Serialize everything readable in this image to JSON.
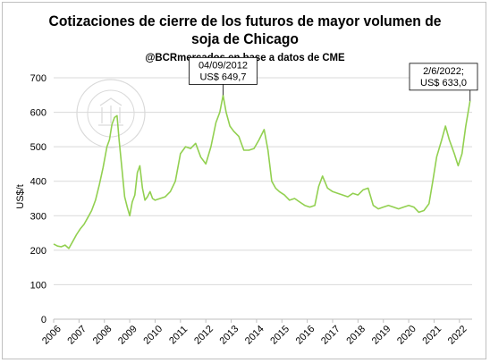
{
  "chart_data": {
    "type": "line",
    "title": "Cotizaciones de cierre de los futuros de mayor volumen de",
    "title_line2": "soja de Chicago",
    "subtitle": "@BCRmercados en base a datos de CME",
    "xlabel": "",
    "ylabel": "US$/t",
    "ylim": [
      0,
      700
    ],
    "yticks": [
      "0",
      "100",
      "200",
      "300",
      "400",
      "500",
      "600",
      "700"
    ],
    "xticks": [
      "2006",
      "2007",
      "2008",
      "2009",
      "2010",
      "2011",
      "2012",
      "2013",
      "2014",
      "2015",
      "2016",
      "2017",
      "2018",
      "2019",
      "2020",
      "2021",
      "2022"
    ],
    "xlim": [
      2006.0,
      2022.5
    ],
    "grid": true,
    "line_color": "#92d050",
    "series": [
      {
        "x": [
          2006.0,
          2006.15,
          2006.3,
          2006.45,
          2006.6,
          2006.75,
          2006.9,
          2007.05,
          2007.2,
          2007.35,
          2007.5,
          2007.65,
          2007.8,
          2007.95,
          2008.1,
          2008.2,
          2008.3,
          2008.4,
          2008.5,
          2008.58,
          2008.7,
          2008.8,
          2008.9,
          2009.0,
          2009.1,
          2009.2,
          2009.3,
          2009.4,
          2009.5,
          2009.6,
          2009.7,
          2009.8,
          2009.9,
          2010.0,
          2010.2,
          2010.4,
          2010.6,
          2010.8,
          2011.0,
          2011.2,
          2011.4,
          2011.6,
          2011.8,
          2012.0,
          2012.2,
          2012.4,
          2012.55,
          2012.68,
          2012.8,
          2012.95,
          2013.1,
          2013.3,
          2013.5,
          2013.7,
          2013.9,
          2014.1,
          2014.3,
          2014.45,
          2014.6,
          2014.75,
          2014.9,
          2015.1,
          2015.3,
          2015.5,
          2015.7,
          2015.9,
          2016.1,
          2016.3,
          2016.45,
          2016.6,
          2016.8,
          2017.0,
          2017.2,
          2017.4,
          2017.6,
          2017.8,
          2018.0,
          2018.2,
          2018.4,
          2018.6,
          2018.8,
          2019.0,
          2019.2,
          2019.4,
          2019.6,
          2019.8,
          2020.0,
          2020.2,
          2020.4,
          2020.6,
          2020.8,
          2020.95,
          2021.1,
          2021.3,
          2021.45,
          2021.6,
          2021.8,
          2021.95,
          2022.1,
          2022.25,
          2022.42
        ],
        "y": [
          218,
          212,
          210,
          215,
          205,
          225,
          245,
          262,
          275,
          295,
          315,
          345,
          390,
          440,
          500,
          520,
          565,
          585,
          590,
          520,
          430,
          355,
          325,
          300,
          340,
          360,
          425,
          445,
          380,
          345,
          355,
          370,
          350,
          345,
          350,
          355,
          370,
          400,
          480,
          500,
          495,
          510,
          470,
          450,
          500,
          570,
          600,
          649,
          600,
          560,
          545,
          530,
          490,
          490,
          495,
          520,
          550,
          490,
          400,
          380,
          370,
          360,
          345,
          350,
          340,
          330,
          325,
          330,
          385,
          415,
          380,
          370,
          365,
          360,
          355,
          365,
          360,
          375,
          380,
          330,
          320,
          325,
          330,
          325,
          320,
          325,
          330,
          325,
          310,
          315,
          335,
          400,
          470,
          520,
          560,
          520,
          480,
          445,
          480,
          560,
          633
        ]
      }
    ],
    "annotations": [
      {
        "date": "04/09/2012",
        "value": "US$ 649,7",
        "x": 2012.68,
        "y": 649.7
      },
      {
        "date": "2/6/2022;",
        "value": "US$ 633,0",
        "x": 2022.42,
        "y": 633.0
      }
    ],
    "watermark": "BOLSA DE COMERCIO DE ROSARIO"
  }
}
